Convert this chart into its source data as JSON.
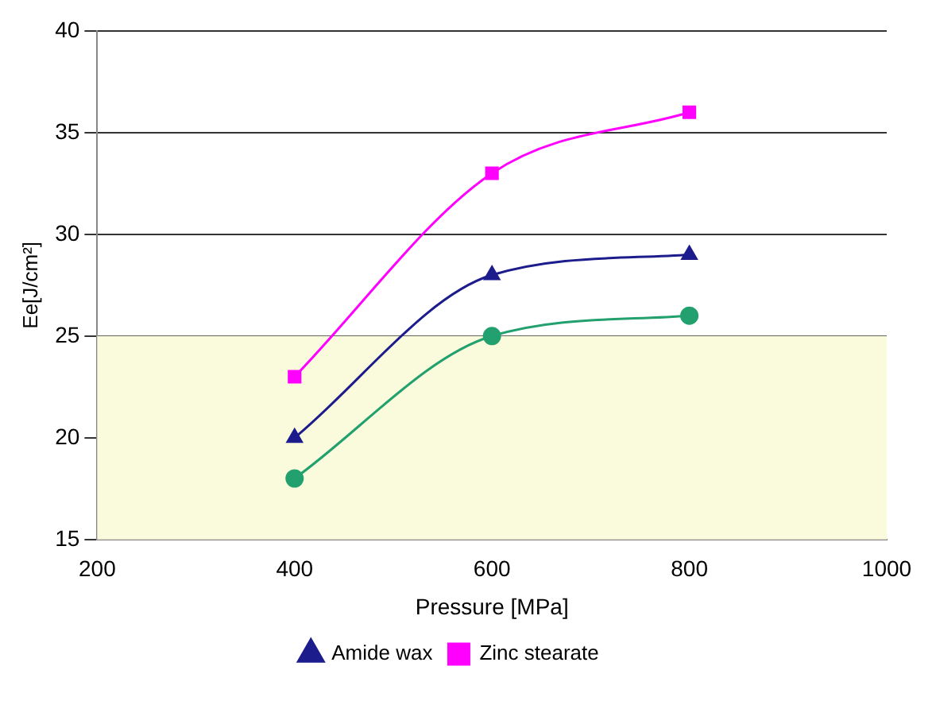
{
  "chart_data": {
    "type": "line",
    "xlabel": "Pressure [MPa]",
    "ylabel": "Ee[J/cm²]",
    "x": [
      400,
      600,
      800
    ],
    "series": [
      {
        "name": "Amide wax",
        "color": "#1c1c8c",
        "marker": "triangle",
        "values": [
          20,
          28,
          29
        ]
      },
      {
        "name": "Zinc stearate",
        "color": "#ff00ff",
        "marker": "square",
        "values": [
          23,
          33,
          36
        ]
      },
      {
        "color": "#22a06e",
        "marker": "circle",
        "values": [
          18,
          25,
          26
        ]
      }
    ],
    "xlim": [
      200,
      1000
    ],
    "xticks": [
      200,
      400,
      600,
      800,
      1000
    ],
    "ylim": [
      15,
      40
    ],
    "yticks": [
      15,
      20,
      25,
      30,
      35,
      40
    ],
    "bands": [
      {
        "axis": "y",
        "from": 15,
        "to": 25,
        "color": "#fafadc"
      }
    ],
    "grid": "y",
    "legend": "bottom"
  }
}
